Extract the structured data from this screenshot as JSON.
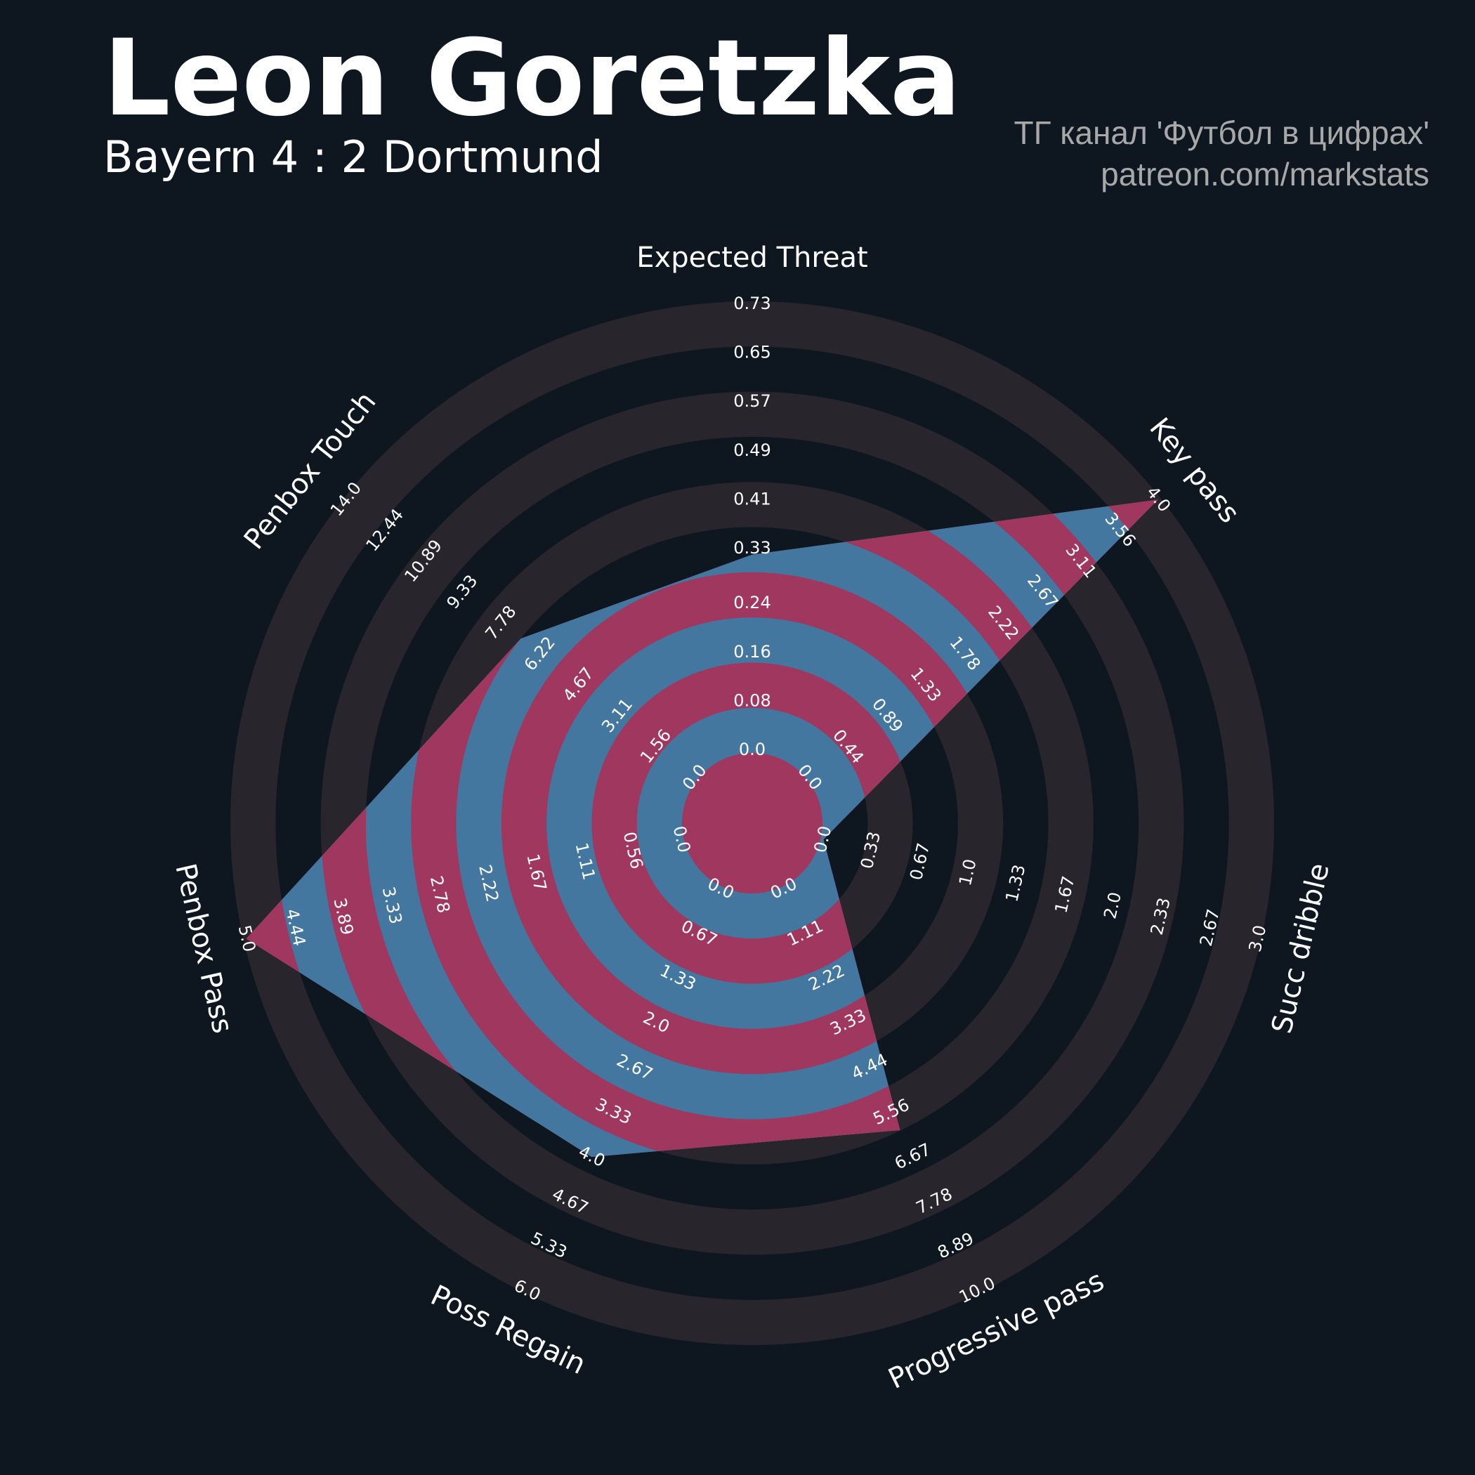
{
  "chart_data": {
    "type": "radar",
    "title": "Leon Goretzka",
    "subtitle": "Bayern 4 : 2 Dortmund",
    "credits": [
      "ТГ канал 'Футбол в цифрах'",
      "patreon.com/markstats"
    ],
    "polygon_color": "#4377a0",
    "ring_color": "#a0375e",
    "background_ring_color": "#28252c",
    "axes": [
      {
        "name": "Expected Threat",
        "lim": [
          0,
          0.73
        ],
        "ticks": [
          {
            "value": 0,
            "label": "0.0"
          },
          0.08,
          0.16,
          0.24,
          0.33,
          0.41,
          0.49,
          0.57,
          0.65,
          0.73
        ]
      },
      {
        "name": "Key pass",
        "lim": [
          0,
          4
        ],
        "ticks": [
          {
            "value": 0,
            "label": "0.0"
          },
          0.44,
          0.89,
          1.33,
          1.78,
          2.22,
          2.67,
          3.11,
          3.56,
          {
            "value": 4,
            "label": "4.0"
          }
        ]
      },
      {
        "name": "Succ dribble",
        "lim": [
          0,
          3
        ],
        "ticks": [
          {
            "value": 0,
            "label": "0.0"
          },
          0.33,
          0.67,
          {
            "value": 1,
            "label": "1.0"
          },
          1.33,
          1.67,
          {
            "value": 2,
            "label": "2.0"
          },
          2.33,
          2.67,
          {
            "value": 3,
            "label": "3.0"
          }
        ]
      },
      {
        "name": "Progressive pass",
        "lim": [
          0,
          10
        ],
        "ticks": [
          {
            "value": 0,
            "label": "0.0"
          },
          1.11,
          2.22,
          3.33,
          4.44,
          5.56,
          6.67,
          7.78,
          8.89,
          {
            "value": 10,
            "label": "10.0"
          }
        ]
      },
      {
        "name": "Poss Regain",
        "lim": [
          0,
          6
        ],
        "ticks": [
          {
            "value": 0,
            "label": "0.0"
          },
          0.67,
          1.33,
          {
            "value": 2,
            "label": "2.0"
          },
          2.67,
          3.33,
          {
            "value": 4,
            "label": "4.0"
          },
          4.67,
          5.33,
          {
            "value": 6,
            "label": "6.0"
          }
        ]
      },
      {
        "name": "Penbox Pass",
        "lim": [
          0,
          5
        ],
        "ticks": [
          {
            "value": 0,
            "label": "0.0"
          },
          0.56,
          1.11,
          1.67,
          2.22,
          2.78,
          3.33,
          3.89,
          4.44,
          {
            "value": 5,
            "label": "5.0"
          }
        ]
      },
      {
        "name": "Penbox Touch",
        "lim": [
          0,
          14
        ],
        "ticks": [
          {
            "value": 0,
            "label": "0.0"
          },
          1.56,
          3.11,
          4.67,
          6.22,
          7.78,
          9.33,
          10.89,
          12.44,
          {
            "value": 14,
            "label": "14.0"
          }
        ]
      }
    ],
    "values": [
      0.32,
      4,
      0,
      6,
      4,
      5,
      7
    ]
  }
}
